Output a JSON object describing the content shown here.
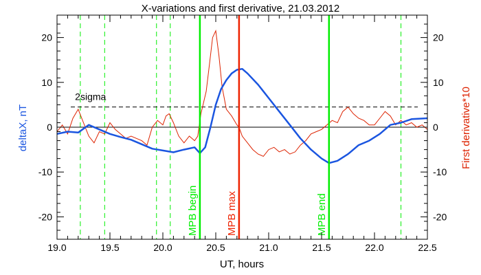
{
  "chart_data": {
    "type": "line",
    "title": "X-variations and first derivative, 21.03.2012",
    "xlabel": "UT, hours",
    "ylabel_left": "deltaX, nT",
    "ylabel_right": "First derivative*10",
    "xlim": [
      19.0,
      22.5
    ],
    "ylim_left": [
      -25,
      25
    ],
    "ylim_right": [
      -25,
      25
    ],
    "x_ticks": [
      "19.0",
      "19.5",
      "20.0",
      "20.5",
      "21.0",
      "21.5",
      "22.0",
      "22.5"
    ],
    "y_ticks": [
      "-20",
      "-10",
      "0",
      "10",
      "20"
    ],
    "colors": {
      "deltaX": "#1a55e0",
      "derivative": "#dd2200",
      "markers": "#00ee00",
      "max": "#ee2200",
      "axes": "#000000"
    },
    "threshold": {
      "label": "2sigma",
      "value": 4.5
    },
    "zero_line": 0,
    "dashed_verticals": [
      19.22,
      19.45,
      19.94,
      20.07,
      22.25
    ],
    "markers": [
      {
        "x": 20.35,
        "label": "MPB begin",
        "color": "#00ee00"
      },
      {
        "x": 20.72,
        "label": "MPB max",
        "color": "#ee2200"
      },
      {
        "x": 21.57,
        "label": "MPB end",
        "color": "#00ee00"
      }
    ],
    "series": [
      {
        "name": "deltaX, nT",
        "x": [
          19.0,
          19.1,
          19.2,
          19.3,
          19.4,
          19.5,
          19.6,
          19.7,
          19.8,
          19.9,
          20.0,
          20.1,
          20.2,
          20.3,
          20.35,
          20.4,
          20.45,
          20.5,
          20.55,
          20.6,
          20.65,
          20.7,
          20.75,
          20.8,
          20.9,
          21.0,
          21.1,
          21.2,
          21.3,
          21.4,
          21.5,
          21.57,
          21.65,
          21.75,
          21.85,
          21.95,
          22.05,
          22.15,
          22.25,
          22.35,
          22.5
        ],
        "y": [
          -1.5,
          -1.0,
          -1.2,
          0.5,
          -0.5,
          -1.5,
          -2.2,
          -2.8,
          -3.8,
          -4.8,
          -5.2,
          -5.6,
          -5.0,
          -4.5,
          -5.8,
          -4.5,
          0.0,
          5.0,
          8.5,
          10.5,
          12.0,
          12.8,
          13.0,
          12.0,
          9.5,
          6.5,
          3.5,
          0.5,
          -2.5,
          -5.0,
          -7.0,
          -8.0,
          -7.5,
          -6.0,
          -4.0,
          -3.0,
          -1.5,
          0.5,
          1.0,
          1.8,
          2.0
        ]
      },
      {
        "name": "First derivative*10",
        "x": [
          19.0,
          19.05,
          19.1,
          19.15,
          19.2,
          19.25,
          19.3,
          19.35,
          19.4,
          19.45,
          19.5,
          19.55,
          19.6,
          19.65,
          19.7,
          19.75,
          19.8,
          19.85,
          19.9,
          19.95,
          20.0,
          20.03,
          20.06,
          20.1,
          20.15,
          20.2,
          20.25,
          20.3,
          20.33,
          20.36,
          20.38,
          20.41,
          20.44,
          20.47,
          20.5,
          20.53,
          20.56,
          20.6,
          20.65,
          20.7,
          20.72,
          20.75,
          20.8,
          20.85,
          20.9,
          20.95,
          21.0,
          21.05,
          21.1,
          21.15,
          21.2,
          21.25,
          21.3,
          21.35,
          21.4,
          21.45,
          21.5,
          21.55,
          21.6,
          21.65,
          21.7,
          21.75,
          21.8,
          21.85,
          21.9,
          21.95,
          22.0,
          22.05,
          22.1,
          22.15,
          22.2,
          22.25,
          22.3,
          22.35,
          22.4,
          22.45,
          22.5
        ],
        "y": [
          -1.0,
          0.5,
          -1.5,
          2.0,
          4.0,
          1.0,
          -2.0,
          -3.5,
          -1.0,
          -1.5,
          1.0,
          -0.5,
          -1.5,
          -2.5,
          -2.0,
          -2.5,
          -3.0,
          -4.0,
          0.0,
          1.5,
          0.5,
          2.5,
          3.0,
          1.0,
          -2.0,
          -3.5,
          -2.0,
          -3.0,
          -2.0,
          3.0,
          5.0,
          8.0,
          14.0,
          20.0,
          21.5,
          16.0,
          9.0,
          4.0,
          2.5,
          0.5,
          0.0,
          -2.0,
          -3.5,
          -5.0,
          -6.0,
          -6.5,
          -5.0,
          -4.5,
          -5.5,
          -5.0,
          -6.0,
          -5.5,
          -4.0,
          -3.0,
          -1.5,
          -1.0,
          -0.5,
          0.5,
          1.5,
          1.0,
          3.5,
          4.5,
          3.0,
          2.0,
          1.5,
          0.5,
          0.5,
          2.0,
          3.5,
          2.5,
          0.5,
          1.5,
          0.5,
          1.0,
          0.0,
          0.5,
          -0.5
        ]
      }
    ]
  }
}
